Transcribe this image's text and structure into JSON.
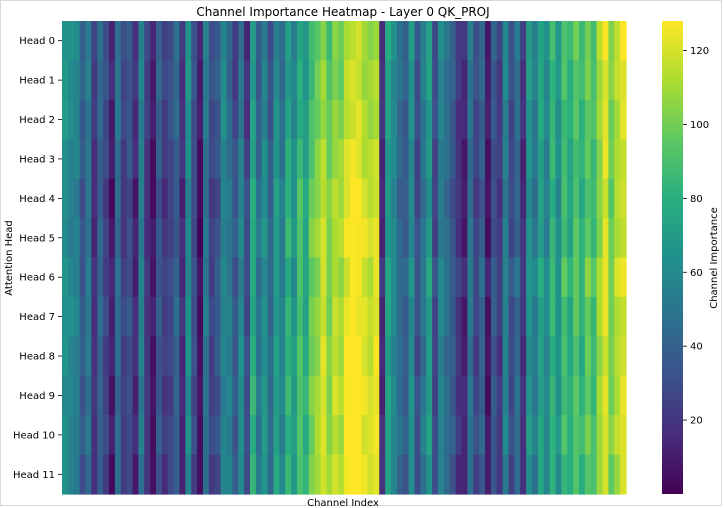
{
  "chart_data": {
    "type": "heatmap",
    "title": "Channel Importance Heatmap - Layer 0 QK_PROJ",
    "xlabel": "Channel Index",
    "ylabel": "Attention Head",
    "row_labels": [
      "Head 0",
      "Head 1",
      "Head 2",
      "Head 3",
      "Head 4",
      "Head 5",
      "Head 6",
      "Head 7",
      "Head 8",
      "Head 9",
      "Head 10",
      "Head 11"
    ],
    "x_tick_labels": [],
    "colormap": "viridis",
    "colorbar": {
      "label": "Channel Importance",
      "range": [
        0,
        128
      ],
      "ticks": [
        20,
        40,
        60,
        80,
        100,
        120
      ]
    },
    "num_channels": 96,
    "channel_base_importance": [
      68,
      62,
      60,
      40,
      55,
      22,
      45,
      30,
      14,
      50,
      28,
      36,
      18,
      58,
      24,
      12,
      40,
      26,
      32,
      44,
      20,
      66,
      34,
      10,
      54,
      30,
      38,
      62,
      46,
      28,
      52,
      22,
      72,
      42,
      58,
      36,
      64,
      48,
      76,
      60,
      84,
      70,
      92,
      100,
      112,
      96,
      108,
      104,
      118,
      124,
      122,
      114,
      110,
      116,
      16,
      72,
      60,
      44,
      38,
      62,
      30,
      50,
      70,
      28,
      56,
      46,
      36,
      20,
      12,
      48,
      26,
      40,
      8,
      34,
      22,
      56,
      30,
      44,
      18,
      66,
      52,
      74,
      58,
      84,
      64,
      90,
      78,
      94,
      82,
      98,
      88,
      108,
      122,
      100,
      114,
      120
    ],
    "head_modifiers": [
      {
        "0-27": 0,
        "28-53": -6,
        "54-95": 4
      },
      {
        "0-27": 0,
        "28-53": -4,
        "54-95": 2
      },
      {
        "0-27": -2,
        "28-53": -2,
        "54-95": 0
      },
      {
        "0-27": -4,
        "28-53": 2,
        "54-95": -2
      },
      {
        "0-27": -8,
        "28-53": 6,
        "54-95": -4
      },
      {
        "0-27": -6,
        "28-53": 8,
        "54-95": -2
      },
      {
        "0-27": -4,
        "28-53": 4,
        "54-95": 4
      },
      {
        "0-27": -2,
        "28-53": 6,
        "54-95": 0
      },
      {
        "0-27": -4,
        "28-53": 8,
        "54-95": -2
      },
      {
        "0-27": -6,
        "28-53": 10,
        "54-95": 0
      },
      {
        "0-27": -4,
        "28-53": 8,
        "54-95": 2
      },
      {
        "0-27": -8,
        "28-53": 10,
        "54-95": -2
      }
    ]
  }
}
